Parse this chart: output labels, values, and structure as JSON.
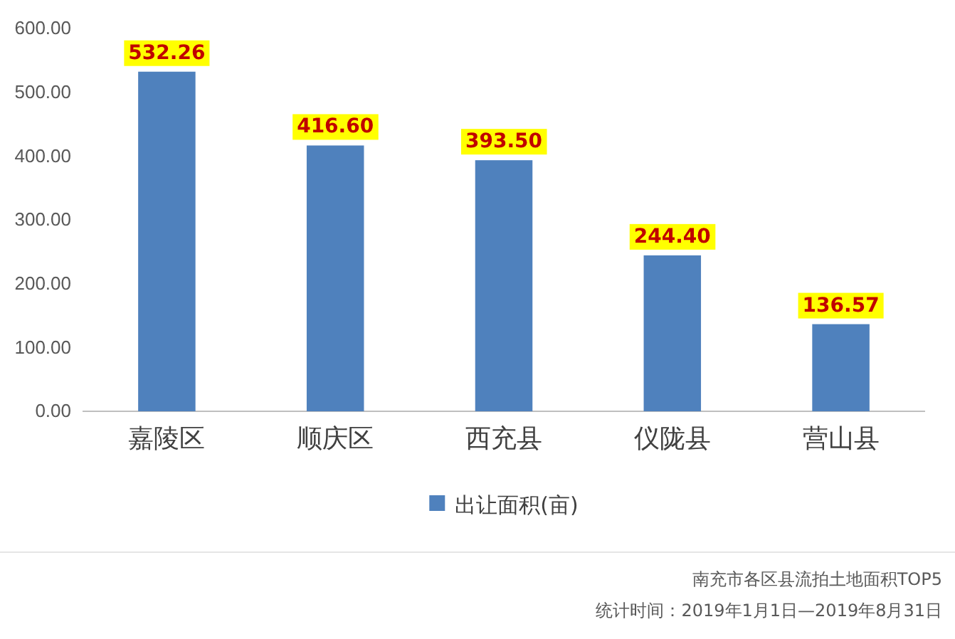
{
  "chart_data": {
    "type": "bar",
    "categories": [
      "嘉陵区",
      "顺庆区",
      "西充县",
      "仪陇县",
      "营山县"
    ],
    "series": [
      {
        "name": "出让面积(亩)",
        "color": "#4f81bd",
        "values": [
          532.26,
          416.6,
          393.5,
          244.4,
          136.57
        ]
      }
    ],
    "value_labels": [
      "532.26",
      "416.60",
      "393.50",
      "244.40",
      "136.57"
    ],
    "ylim": [
      0,
      600
    ],
    "yticks": [
      {
        "value": 0,
        "label": "0.00"
      },
      {
        "value": 100,
        "label": "100.00"
      },
      {
        "value": 200,
        "label": "200.00"
      },
      {
        "value": 300,
        "label": "300.00"
      },
      {
        "value": 400,
        "label": "400.00"
      },
      {
        "value": 500,
        "label": "500.00"
      },
      {
        "value": 600,
        "label": "600.00"
      }
    ],
    "grid": false,
    "legend": "bottom",
    "annotations": [
      "南充市各区县流拍土地面积TOP5",
      "统计时间：2019年1月1日—2019年8月31日"
    ]
  }
}
